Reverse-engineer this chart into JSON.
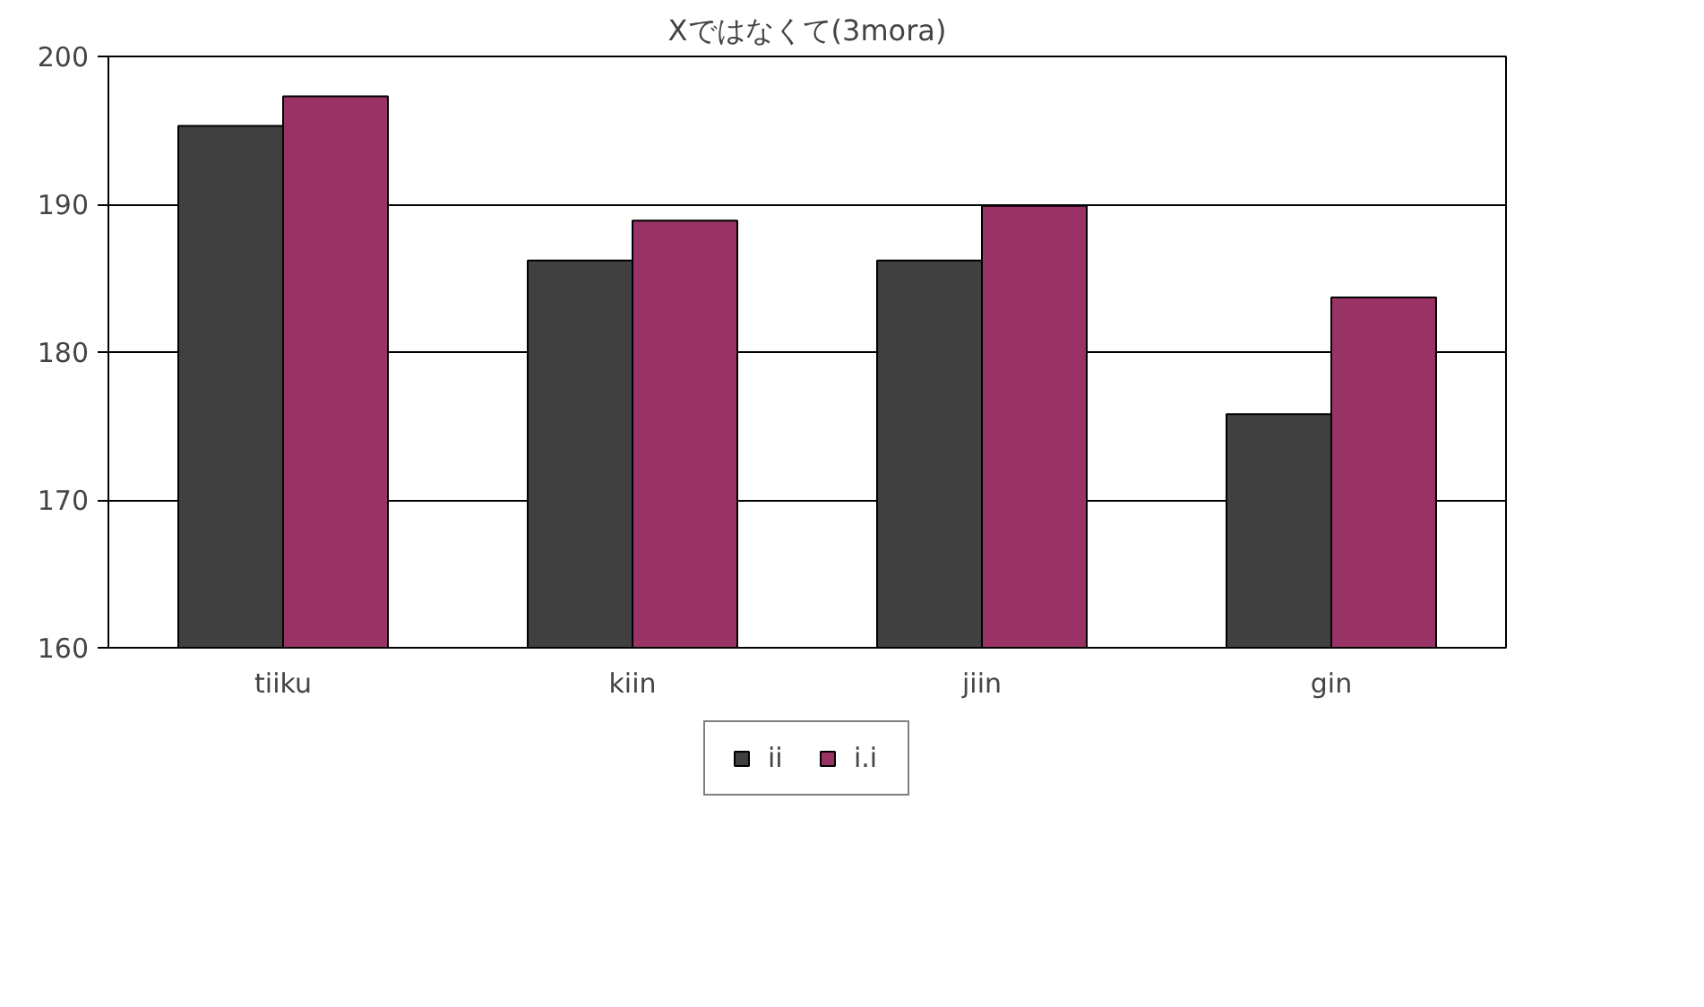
{
  "chart_data": {
    "type": "bar",
    "title": "Xではなくて(3mora)",
    "categories": [
      "tiiku",
      "kiin",
      "jiin",
      "gin"
    ],
    "series": [
      {
        "name": "ii",
        "color": "#404040",
        "values": [
          195.3,
          186.2,
          186.2,
          175.8
        ]
      },
      {
        "name": "i.i",
        "color": "#993366",
        "values": [
          197.3,
          188.9,
          189.9,
          183.7
        ]
      }
    ],
    "ylim": [
      160,
      200
    ],
    "yticks": [
      160,
      170,
      180,
      190,
      200
    ],
    "grid": "y",
    "legend": "bottom"
  }
}
